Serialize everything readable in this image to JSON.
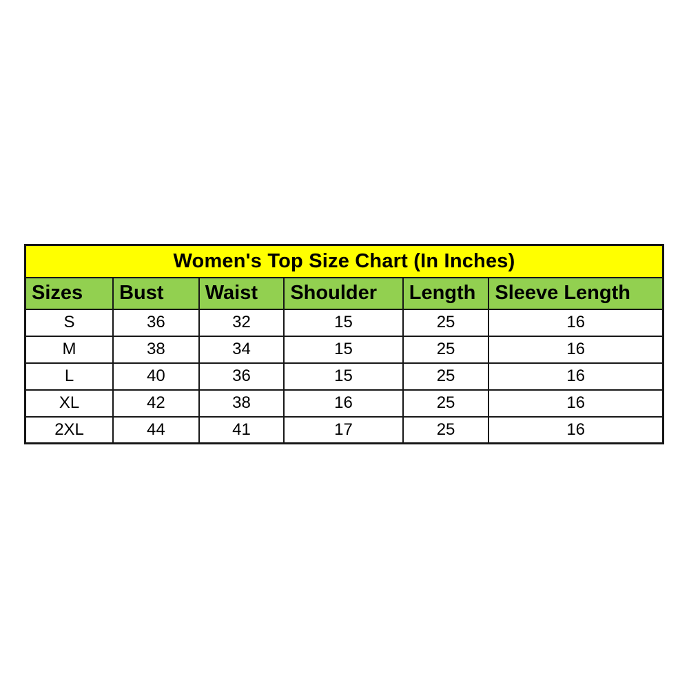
{
  "page": {
    "background": "#ffffff"
  },
  "colors": {
    "title_bg": "#ffff00",
    "header_bg": "#92d050",
    "border": "#161616",
    "text": "#000000"
  },
  "chart_data": {
    "type": "table",
    "title": "Women's Top Size Chart (In Inches)",
    "columns": [
      "Sizes",
      "Bust",
      "Waist",
      "Shoulder",
      "Length",
      "Sleeve Length"
    ],
    "rows": [
      [
        "S",
        "36",
        "32",
        "15",
        "25",
        "16"
      ],
      [
        "M",
        "38",
        "34",
        "15",
        "25",
        "16"
      ],
      [
        "L",
        "40",
        "36",
        "15",
        "25",
        "16"
      ],
      [
        "XL",
        "42",
        "38",
        "16",
        "25",
        "16"
      ],
      [
        "2XL",
        "44",
        "41",
        "17",
        "25",
        "16"
      ]
    ]
  }
}
